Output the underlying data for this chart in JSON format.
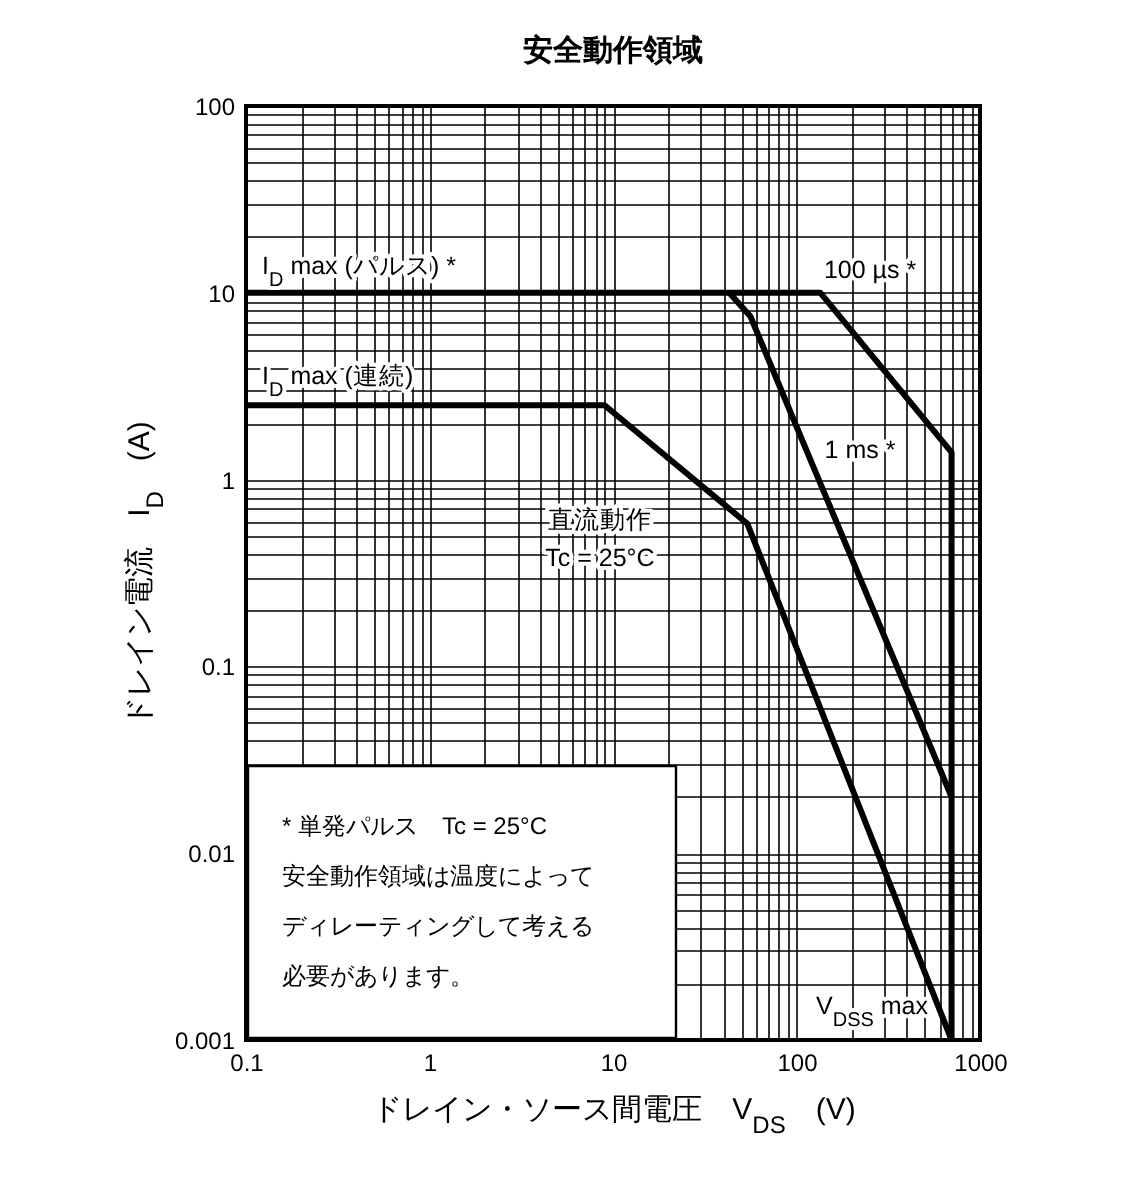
{
  "chart_data": {
    "type": "line",
    "title": "安全動作領域",
    "xlabel": "ドレイン・ソース間電圧　V$_{DS}$　(V)",
    "ylabel": "ドレイン電流　I$_{D}$　(A)",
    "log": "xy",
    "grid": true,
    "legend": false,
    "marker": "none",
    "line_style": "solid",
    "xlim": [
      0.1,
      1000
    ],
    "xticks": [
      0.1,
      1,
      10,
      100,
      1000
    ],
    "ylim": [
      0.001,
      100
    ],
    "yticks": [
      0.001,
      0.01,
      0.1,
      1,
      10,
      100
    ],
    "series": [
      {
        "name": "100 µs *",
        "color": "#000000",
        "x": [
          0.1,
          135,
          700,
          700
        ],
        "values": [
          10,
          10,
          1.4,
          0.02
        ]
      },
      {
        "name": "1 ms *",
        "color": "#000000",
        "x": [
          43,
          56,
          700,
          700
        ],
        "values": [
          10,
          7.5,
          0.02,
          0.001
        ]
      },
      {
        "name": "直流動作\nTc = 25°C",
        "color": "#000000",
        "x": [
          0.1,
          9,
          54,
          700
        ],
        "values": [
          2.5,
          2.5,
          0.58,
          0.001
        ]
      }
    ],
    "annotations": [
      "I$_{D}$ max (パルス) *",
      "I$_{D}$ max (連続)",
      "V$_{DSS}$ max",
      "*  単発パルス　Tc = 25°C",
      "安全動作領域は温度によってディレーティングして考える必要があります。"
    ]
  }
}
